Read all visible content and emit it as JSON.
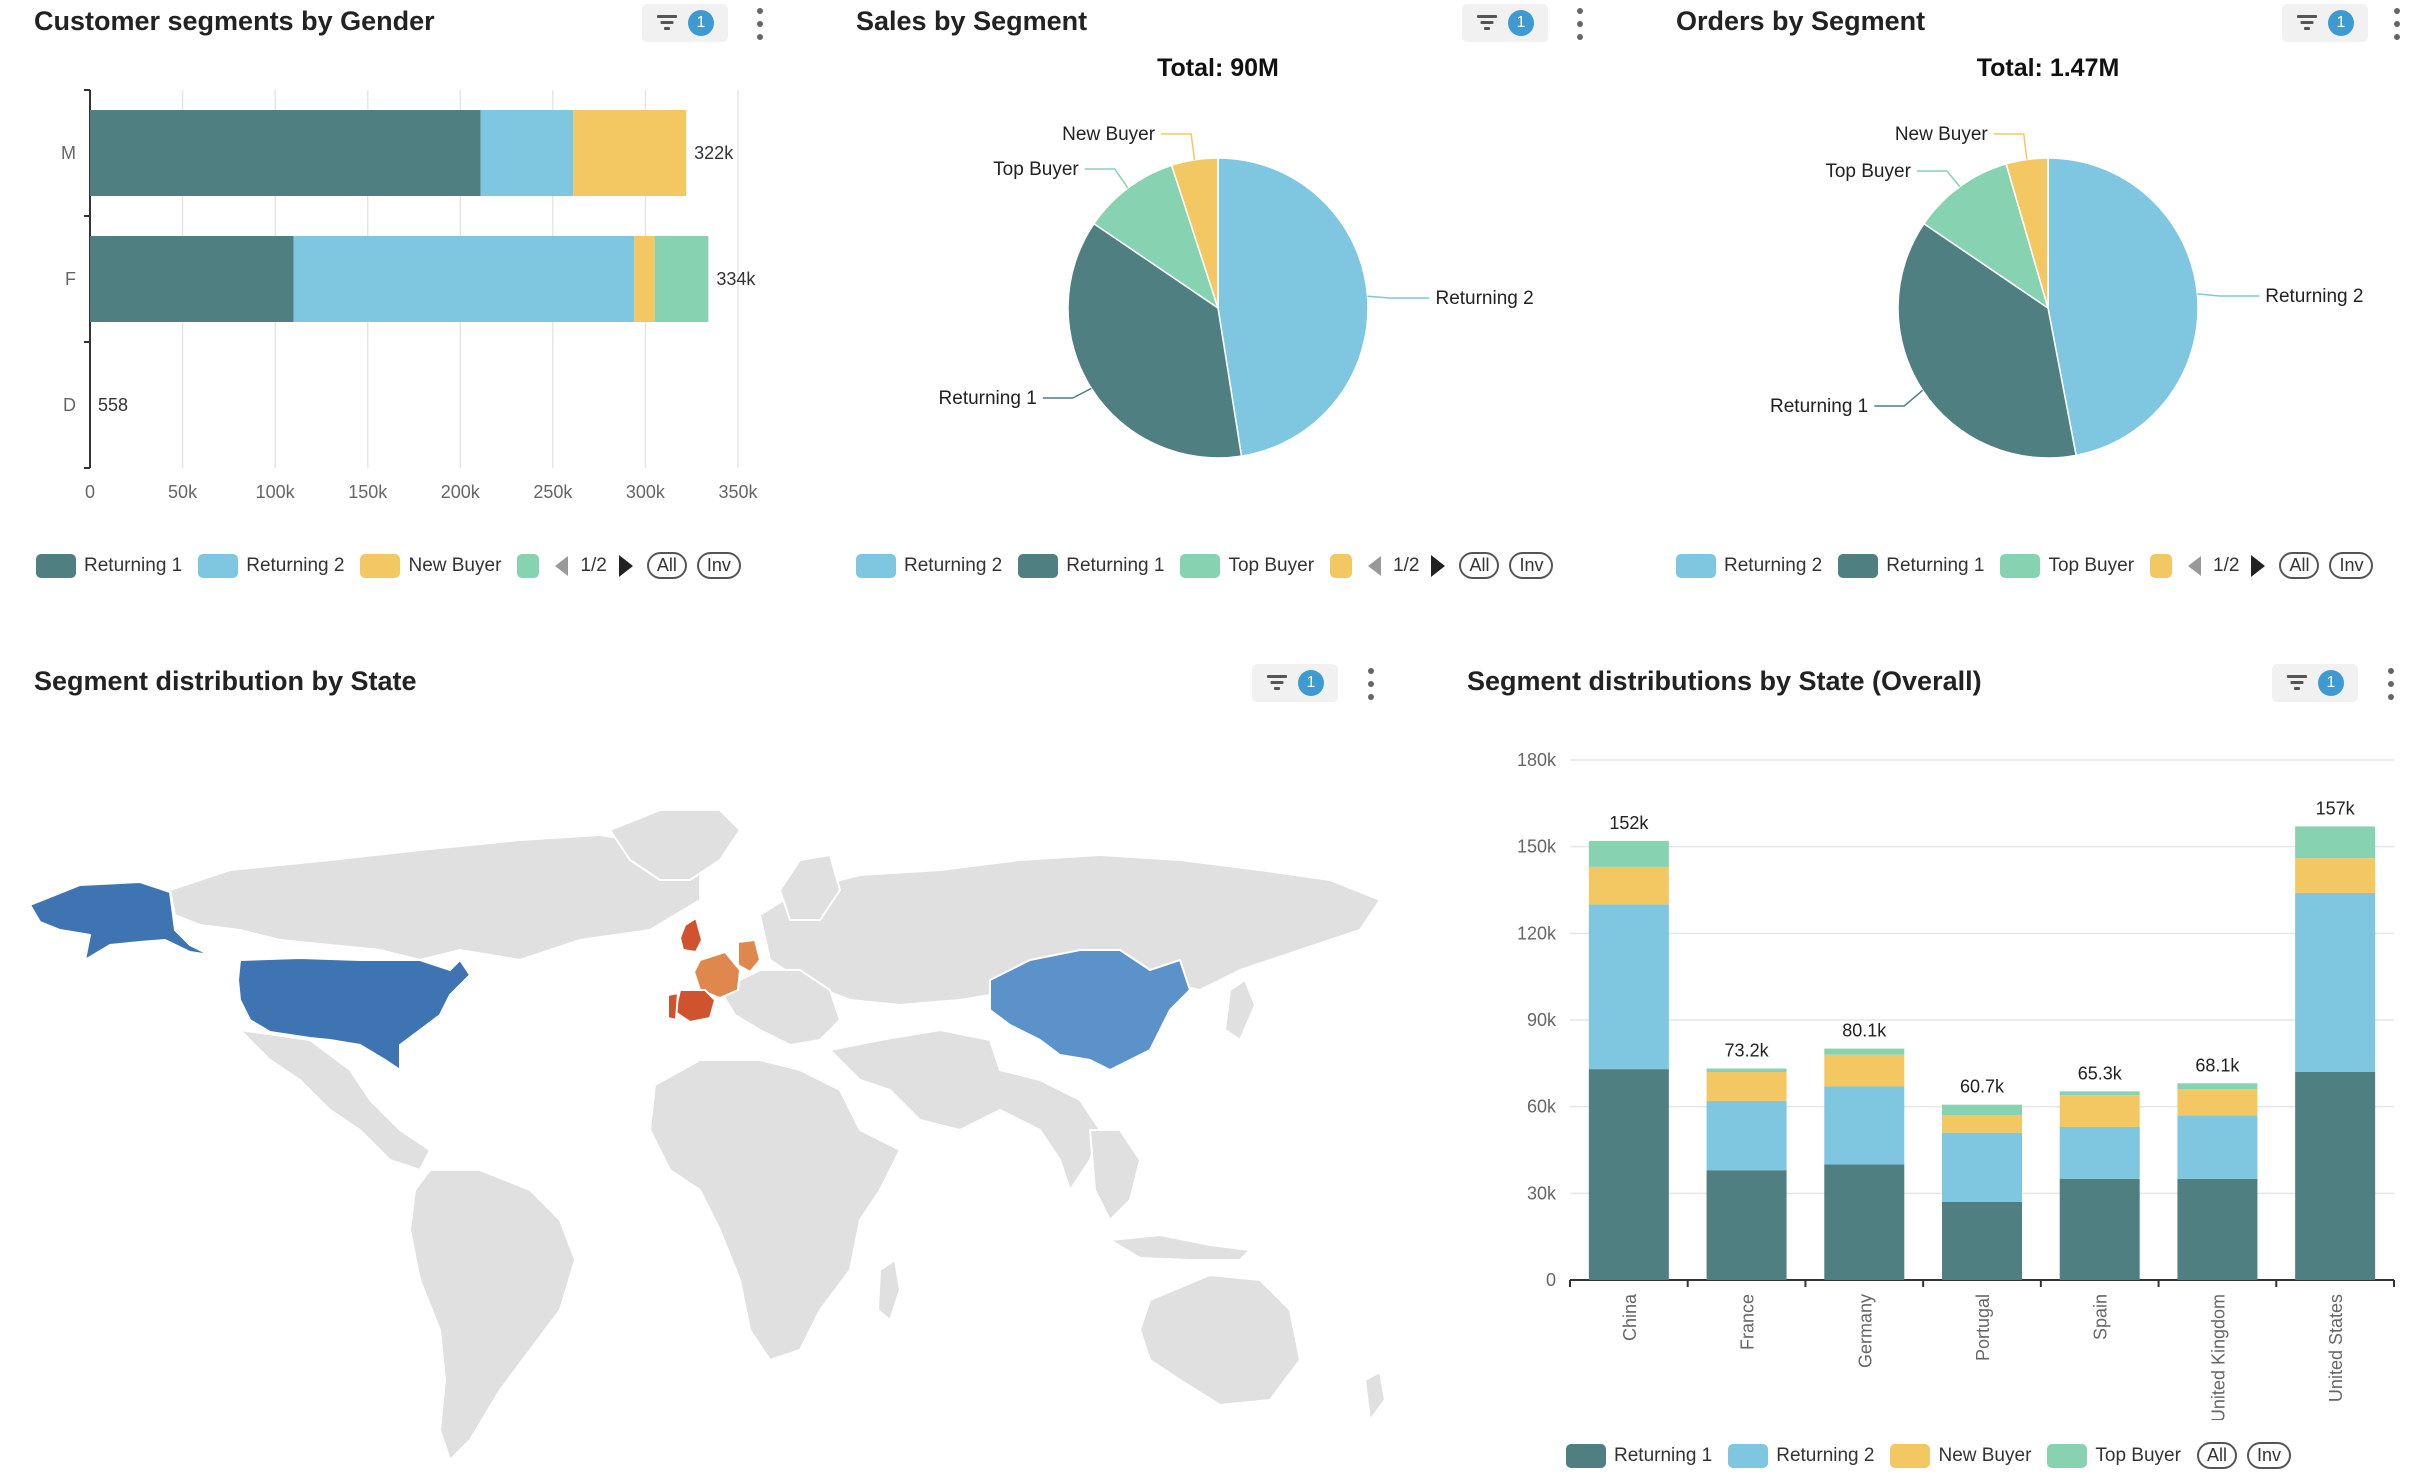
{
  "colors": {
    "returning1": "#4f7f81",
    "returning2": "#7fc6e0",
    "new_buyer": "#f3c862",
    "top_buyer": "#87d2b1",
    "map_gray": "#e0e0e0",
    "map_blue_dark": "#3d74b1",
    "map_blue_light": "#5b92c9",
    "map_orange": "#e0874d",
    "map_red": "#d0532f"
  },
  "filter_badge": "1",
  "panels": {
    "gender": {
      "title": "Customer segments by Gender",
      "legend": [
        "Returning 1",
        "Returning 2",
        "New Buyer"
      ],
      "page": "1/2",
      "all": "All",
      "inv": "Inv"
    },
    "sales": {
      "title": "Sales by Segment",
      "total": "Total: 90M",
      "legend": [
        "Returning 2",
        "Returning 1",
        "Top Buyer"
      ],
      "page": "1/2",
      "all": "All",
      "inv": "Inv"
    },
    "orders": {
      "title": "Orders by Segment",
      "total": "Total: 1.47M",
      "legend": [
        "Returning 2",
        "Returning 1",
        "Top Buyer"
      ],
      "page": "1/2",
      "all": "All",
      "inv": "Inv"
    },
    "map": {
      "title": "Segment distribution by State"
    },
    "stack": {
      "title": "Segment distributions by State (Overall)",
      "legend": [
        "Returning 1",
        "Returning 2",
        "New Buyer",
        "Top Buyer"
      ],
      "all": "All",
      "inv": "Inv"
    }
  },
  "chart_data": [
    {
      "type": "bar",
      "orientation": "horizontal",
      "stacked": true,
      "categories": [
        "M",
        "F",
        "D"
      ],
      "xlim": [
        0,
        350000
      ],
      "xticks": [
        "0",
        "50k",
        "100k",
        "150k",
        "200k",
        "250k",
        "300k",
        "350k"
      ],
      "totals": [
        "322k",
        "334k",
        "558"
      ],
      "series": [
        {
          "name": "Returning 1",
          "values": [
            211000,
            110000,
            0
          ]
        },
        {
          "name": "Returning 2",
          "values": [
            50000,
            184000,
            0
          ]
        },
        {
          "name": "New Buyer",
          "values": [
            61000,
            11000,
            0
          ]
        },
        {
          "name": "Top Buyer",
          "values": [
            0,
            29000,
            558
          ]
        }
      ]
    },
    {
      "type": "pie",
      "title": "Total: 90M",
      "slices": [
        {
          "name": "Returning 2",
          "value": 47.5
        },
        {
          "name": "Returning 1",
          "value": 37.0
        },
        {
          "name": "Top Buyer",
          "value": 10.5
        },
        {
          "name": "New Buyer",
          "value": 5.0
        }
      ]
    },
    {
      "type": "pie",
      "title": "Total: 1.47M",
      "slices": [
        {
          "name": "Returning 2",
          "value": 47.0
        },
        {
          "name": "Returning 1",
          "value": 37.5
        },
        {
          "name": "Top Buyer",
          "value": 11.0
        },
        {
          "name": "New Buyer",
          "value": 4.5
        }
      ]
    },
    {
      "type": "bar",
      "stacked": true,
      "categories": [
        "China",
        "France",
        "Germany",
        "Portugal",
        "Spain",
        "United Kingdom",
        "United States"
      ],
      "ylim": [
        0,
        180000
      ],
      "yticks": [
        "0",
        "30k",
        "60k",
        "90k",
        "120k",
        "150k",
        "180k"
      ],
      "totals": [
        "152k",
        "73.2k",
        "80.1k",
        "60.7k",
        "65.3k",
        "68.1k",
        "157k"
      ],
      "series": [
        {
          "name": "Returning 1",
          "values": [
            73000,
            38000,
            40000,
            27000,
            35000,
            35000,
            72000
          ]
        },
        {
          "name": "Returning 2",
          "values": [
            57000,
            24000,
            27000,
            24000,
            18000,
            22000,
            62000
          ]
        },
        {
          "name": "New Buyer",
          "values": [
            13000,
            10000,
            11000,
            6000,
            11000,
            9000,
            12000
          ]
        },
        {
          "name": "Top Buyer",
          "values": [
            9000,
            1200,
            2100,
            3700,
            1300,
            2100,
            11000
          ]
        }
      ]
    }
  ]
}
